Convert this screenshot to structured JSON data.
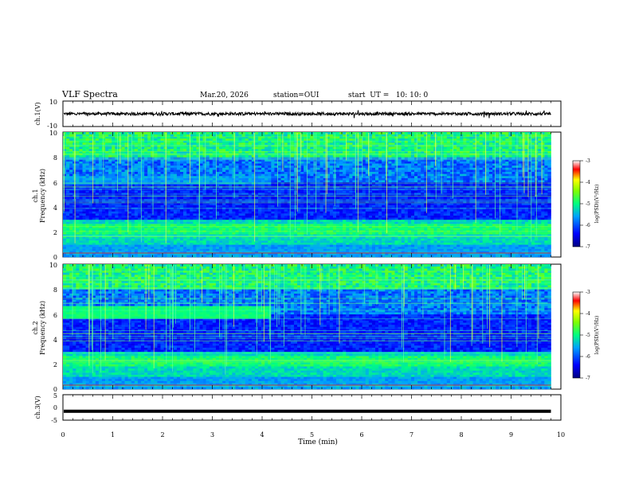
{
  "header": {
    "title": "VLF Spectra",
    "date": "Mar.20, 2026",
    "station": "station=OUI",
    "start_ut": "start  UT =   10: 10: 0"
  },
  "chart_data": [
    {
      "type": "line",
      "name": "ch1-waveform",
      "ylabel": "ch.1(V)",
      "ylim": [
        -10,
        10
      ],
      "y_ticks": [
        "10",
        "-10"
      ],
      "x_range": [
        0,
        10
      ],
      "signal_x_end": 9.8,
      "baseline": 0,
      "noise_amplitude_v": 1.2
    },
    {
      "type": "heatmap",
      "name": "ch1-spectrogram",
      "ylabel": "ch.1\nFrequency  (kHz)",
      "ylim": [
        0,
        10
      ],
      "y_ticks": [
        "0",
        "2",
        "4",
        "6",
        "8",
        "10"
      ],
      "x_range": [
        0,
        10
      ],
      "data_x_end": 9.8,
      "colorbar": {
        "label": "log(PSD)(V²/Hz)",
        "range": [
          -7,
          -3
        ],
        "ticks": [
          "-3",
          "-4",
          "-5",
          "-6",
          "-7"
        ]
      }
    },
    {
      "type": "heatmap",
      "name": "ch2-spectrogram",
      "ylabel": "ch.2\nFrequency  (kHz)",
      "ylim": [
        0,
        10
      ],
      "y_ticks": [
        "0",
        "2",
        "4",
        "6",
        "8",
        "10"
      ],
      "x_range": [
        0,
        10
      ],
      "data_x_end": 9.8,
      "band_6khz_end_min": 4.2,
      "colorbar": {
        "label": "log(PSD)(V²/Hz)",
        "range": [
          -7,
          -3
        ],
        "ticks": [
          "-3",
          "-4",
          "-5",
          "-6",
          "-7"
        ]
      }
    },
    {
      "type": "line",
      "name": "ch3-waveform",
      "ylabel": "ch.3(V)",
      "ylim": [
        -5,
        5
      ],
      "y_ticks": [
        "5",
        "0",
        "-5"
      ],
      "x_range": [
        0,
        10
      ],
      "signal_x_end": 9.8,
      "baseline": -1.5
    }
  ],
  "xaxis": {
    "label": "Time  (min)",
    "ticks": [
      "0",
      "1",
      "2",
      "3",
      "4",
      "5",
      "6",
      "7",
      "8",
      "9",
      "10"
    ]
  },
  "colors": {
    "frame": "#000000",
    "bg": "#ffffff"
  }
}
